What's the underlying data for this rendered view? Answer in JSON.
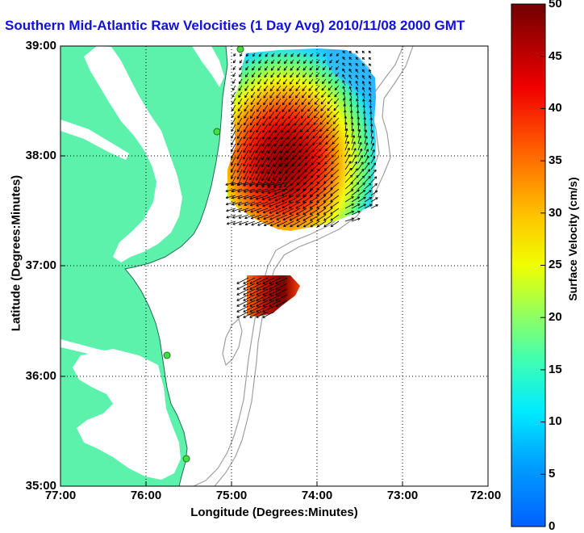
{
  "title": "Southern Mid-Atlantic Raw Velocities (1 Day Avg) 2010/11/08 2000 GMT",
  "xlabel": "Longitude (Degrees:Minutes)",
  "ylabel": "Latitude (Degrees:Minutes)",
  "colorbar": {
    "label": "Surface Velocity (cm/s)",
    "ticks": [
      "0",
      "5",
      "10",
      "15",
      "20",
      "25",
      "30",
      "35",
      "40",
      "45",
      "50"
    ],
    "min": 0,
    "max": 50
  },
  "map": {
    "lon_range": [
      -77,
      -72
    ],
    "lat_range": [
      35,
      39
    ],
    "xticks": [
      "77:00",
      "76:00",
      "75:00",
      "74:00",
      "73:00",
      "72:00"
    ],
    "yticks": [
      "39:00",
      "38:00",
      "37:00",
      "36:00",
      "35:00"
    ],
    "grid": "dotted",
    "colors": {
      "land": "#5cf2ac",
      "water": "#ffffff",
      "bathymetry": "#a0a0a0",
      "vectors": "#000000",
      "stations": "#40e040"
    },
    "stations": [
      {
        "lon": -74.9,
        "lat": 38.96
      },
      {
        "lon": -75.18,
        "lat": 38.2
      },
      {
        "lon": -75.75,
        "lat": 36.2
      },
      {
        "lon": -75.5,
        "lat": 35.25
      }
    ],
    "field_north": {
      "lon_range": [
        -75.1,
        -73.2
      ],
      "lat_range": [
        37.3,
        38.95
      ],
      "speed_peak": 50,
      "peak_lon": -74.4,
      "peak_lat": 37.7
    },
    "field_south": {
      "lon_range": [
        -74.95,
        -74.3
      ],
      "lat_range": [
        36.6,
        36.9
      ],
      "speed_peak": 48
    }
  }
}
